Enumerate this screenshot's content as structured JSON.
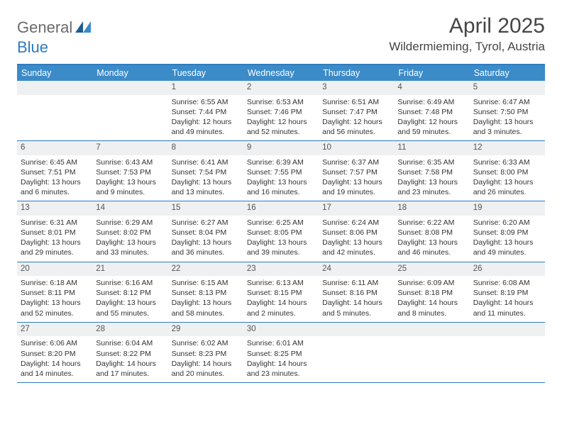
{
  "brand": {
    "part1": "General",
    "part2": "Blue"
  },
  "title": "April 2025",
  "location": "Wildermieming, Tyrol, Austria",
  "colors": {
    "accent": "#3b8bc9",
    "accent_border": "#2f7bbf",
    "daynum_bg": "#eef0f2",
    "text": "#333333",
    "brand_gray": "#6a6a6a",
    "brand_blue": "#2f7bbf"
  },
  "day_headers": [
    "Sunday",
    "Monday",
    "Tuesday",
    "Wednesday",
    "Thursday",
    "Friday",
    "Saturday"
  ],
  "weeks": [
    [
      {
        "n": "",
        "sr": "",
        "ss": "",
        "dl": ""
      },
      {
        "n": "",
        "sr": "",
        "ss": "",
        "dl": ""
      },
      {
        "n": "1",
        "sr": "Sunrise: 6:55 AM",
        "ss": "Sunset: 7:44 PM",
        "dl": "Daylight: 12 hours and 49 minutes."
      },
      {
        "n": "2",
        "sr": "Sunrise: 6:53 AM",
        "ss": "Sunset: 7:46 PM",
        "dl": "Daylight: 12 hours and 52 minutes."
      },
      {
        "n": "3",
        "sr": "Sunrise: 6:51 AM",
        "ss": "Sunset: 7:47 PM",
        "dl": "Daylight: 12 hours and 56 minutes."
      },
      {
        "n": "4",
        "sr": "Sunrise: 6:49 AM",
        "ss": "Sunset: 7:48 PM",
        "dl": "Daylight: 12 hours and 59 minutes."
      },
      {
        "n": "5",
        "sr": "Sunrise: 6:47 AM",
        "ss": "Sunset: 7:50 PM",
        "dl": "Daylight: 13 hours and 3 minutes."
      }
    ],
    [
      {
        "n": "6",
        "sr": "Sunrise: 6:45 AM",
        "ss": "Sunset: 7:51 PM",
        "dl": "Daylight: 13 hours and 6 minutes."
      },
      {
        "n": "7",
        "sr": "Sunrise: 6:43 AM",
        "ss": "Sunset: 7:53 PM",
        "dl": "Daylight: 13 hours and 9 minutes."
      },
      {
        "n": "8",
        "sr": "Sunrise: 6:41 AM",
        "ss": "Sunset: 7:54 PM",
        "dl": "Daylight: 13 hours and 13 minutes."
      },
      {
        "n": "9",
        "sr": "Sunrise: 6:39 AM",
        "ss": "Sunset: 7:55 PM",
        "dl": "Daylight: 13 hours and 16 minutes."
      },
      {
        "n": "10",
        "sr": "Sunrise: 6:37 AM",
        "ss": "Sunset: 7:57 PM",
        "dl": "Daylight: 13 hours and 19 minutes."
      },
      {
        "n": "11",
        "sr": "Sunrise: 6:35 AM",
        "ss": "Sunset: 7:58 PM",
        "dl": "Daylight: 13 hours and 23 minutes."
      },
      {
        "n": "12",
        "sr": "Sunrise: 6:33 AM",
        "ss": "Sunset: 8:00 PM",
        "dl": "Daylight: 13 hours and 26 minutes."
      }
    ],
    [
      {
        "n": "13",
        "sr": "Sunrise: 6:31 AM",
        "ss": "Sunset: 8:01 PM",
        "dl": "Daylight: 13 hours and 29 minutes."
      },
      {
        "n": "14",
        "sr": "Sunrise: 6:29 AM",
        "ss": "Sunset: 8:02 PM",
        "dl": "Daylight: 13 hours and 33 minutes."
      },
      {
        "n": "15",
        "sr": "Sunrise: 6:27 AM",
        "ss": "Sunset: 8:04 PM",
        "dl": "Daylight: 13 hours and 36 minutes."
      },
      {
        "n": "16",
        "sr": "Sunrise: 6:25 AM",
        "ss": "Sunset: 8:05 PM",
        "dl": "Daylight: 13 hours and 39 minutes."
      },
      {
        "n": "17",
        "sr": "Sunrise: 6:24 AM",
        "ss": "Sunset: 8:06 PM",
        "dl": "Daylight: 13 hours and 42 minutes."
      },
      {
        "n": "18",
        "sr": "Sunrise: 6:22 AM",
        "ss": "Sunset: 8:08 PM",
        "dl": "Daylight: 13 hours and 46 minutes."
      },
      {
        "n": "19",
        "sr": "Sunrise: 6:20 AM",
        "ss": "Sunset: 8:09 PM",
        "dl": "Daylight: 13 hours and 49 minutes."
      }
    ],
    [
      {
        "n": "20",
        "sr": "Sunrise: 6:18 AM",
        "ss": "Sunset: 8:11 PM",
        "dl": "Daylight: 13 hours and 52 minutes."
      },
      {
        "n": "21",
        "sr": "Sunrise: 6:16 AM",
        "ss": "Sunset: 8:12 PM",
        "dl": "Daylight: 13 hours and 55 minutes."
      },
      {
        "n": "22",
        "sr": "Sunrise: 6:15 AM",
        "ss": "Sunset: 8:13 PM",
        "dl": "Daylight: 13 hours and 58 minutes."
      },
      {
        "n": "23",
        "sr": "Sunrise: 6:13 AM",
        "ss": "Sunset: 8:15 PM",
        "dl": "Daylight: 14 hours and 2 minutes."
      },
      {
        "n": "24",
        "sr": "Sunrise: 6:11 AM",
        "ss": "Sunset: 8:16 PM",
        "dl": "Daylight: 14 hours and 5 minutes."
      },
      {
        "n": "25",
        "sr": "Sunrise: 6:09 AM",
        "ss": "Sunset: 8:18 PM",
        "dl": "Daylight: 14 hours and 8 minutes."
      },
      {
        "n": "26",
        "sr": "Sunrise: 6:08 AM",
        "ss": "Sunset: 8:19 PM",
        "dl": "Daylight: 14 hours and 11 minutes."
      }
    ],
    [
      {
        "n": "27",
        "sr": "Sunrise: 6:06 AM",
        "ss": "Sunset: 8:20 PM",
        "dl": "Daylight: 14 hours and 14 minutes."
      },
      {
        "n": "28",
        "sr": "Sunrise: 6:04 AM",
        "ss": "Sunset: 8:22 PM",
        "dl": "Daylight: 14 hours and 17 minutes."
      },
      {
        "n": "29",
        "sr": "Sunrise: 6:02 AM",
        "ss": "Sunset: 8:23 PM",
        "dl": "Daylight: 14 hours and 20 minutes."
      },
      {
        "n": "30",
        "sr": "Sunrise: 6:01 AM",
        "ss": "Sunset: 8:25 PM",
        "dl": "Daylight: 14 hours and 23 minutes."
      },
      {
        "n": "",
        "sr": "",
        "ss": "",
        "dl": ""
      },
      {
        "n": "",
        "sr": "",
        "ss": "",
        "dl": ""
      },
      {
        "n": "",
        "sr": "",
        "ss": "",
        "dl": ""
      }
    ]
  ]
}
